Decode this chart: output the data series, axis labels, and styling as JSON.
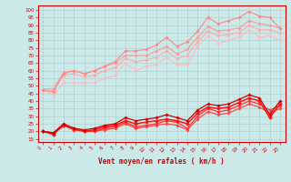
{
  "title": "",
  "xlabel": "Vent moyen/en rafales ( km/h )",
  "ylabel": "",
  "bg_color": "#cce9e9",
  "grid_color": "#aacccc",
  "x_ticks": [
    0,
    1,
    2,
    3,
    4,
    5,
    6,
    7,
    8,
    9,
    10,
    11,
    12,
    13,
    14,
    15,
    16,
    17,
    18,
    19,
    20,
    21,
    22,
    23
  ],
  "y_ticks": [
    15,
    20,
    25,
    30,
    35,
    40,
    45,
    50,
    55,
    60,
    65,
    70,
    75,
    80,
    85,
    90,
    95,
    100
  ],
  "ylim": [
    13,
    103
  ],
  "xlim": [
    -0.5,
    23.5
  ],
  "series": [
    {
      "color": "#ffbbbb",
      "lw": 0.8,
      "marker": "D",
      "ms": 1.8,
      "data": [
        47,
        44,
        52,
        52,
        52,
        52,
        55,
        57,
        65,
        60,
        63,
        64,
        69,
        64,
        64,
        76,
        83,
        78,
        80,
        82,
        87,
        82,
        83,
        80
      ]
    },
    {
      "color": "#ffaaaa",
      "lw": 0.8,
      "marker": "D",
      "ms": 1.8,
      "data": [
        47,
        47,
        57,
        58,
        56,
        57,
        60,
        62,
        68,
        66,
        67,
        69,
        73,
        68,
        70,
        79,
        86,
        83,
        84,
        85,
        90,
        87,
        87,
        85
      ]
    },
    {
      "color": "#ff9999",
      "lw": 0.8,
      "marker": "D",
      "ms": 1.8,
      "data": [
        48,
        48,
        59,
        60,
        58,
        60,
        63,
        65,
        70,
        70,
        70,
        73,
        76,
        71,
        74,
        82,
        89,
        86,
        87,
        88,
        93,
        91,
        90,
        88
      ]
    },
    {
      "color": "#ff8888",
      "lw": 0.8,
      "marker": "D",
      "ms": 1.8,
      "data": [
        47,
        46,
        58,
        60,
        58,
        60,
        63,
        66,
        73,
        73,
        74,
        77,
        82,
        76,
        79,
        86,
        95,
        91,
        93,
        95,
        99,
        96,
        95,
        88
      ]
    },
    {
      "color": "#ff4444",
      "lw": 0.9,
      "marker": "D",
      "ms": 1.8,
      "data": [
        20,
        19,
        24,
        21,
        20,
        20,
        21,
        22,
        25,
        22,
        23,
        24,
        25,
        24,
        21,
        28,
        33,
        31,
        32,
        35,
        38,
        36,
        32,
        35
      ]
    },
    {
      "color": "#ff3333",
      "lw": 0.9,
      "marker": "D",
      "ms": 1.8,
      "data": [
        20,
        19,
        24,
        21,
        20,
        20,
        22,
        23,
        26,
        23,
        24,
        25,
        27,
        26,
        22,
        30,
        35,
        33,
        34,
        37,
        40,
        38,
        34,
        37
      ]
    },
    {
      "color": "#ff1111",
      "lw": 1.1,
      "marker": "D",
      "ms": 2.2,
      "data": [
        20,
        18,
        24,
        22,
        20,
        21,
        23,
        24,
        27,
        25,
        26,
        27,
        28,
        27,
        25,
        32,
        36,
        35,
        36,
        39,
        42,
        40,
        29,
        38
      ]
    },
    {
      "color": "#cc0000",
      "lw": 0.9,
      "marker": "D",
      "ms": 1.8,
      "data": [
        20,
        19,
        25,
        22,
        21,
        22,
        24,
        25,
        29,
        27,
        28,
        29,
        31,
        29,
        27,
        34,
        38,
        37,
        38,
        41,
        44,
        42,
        31,
        40
      ]
    }
  ]
}
